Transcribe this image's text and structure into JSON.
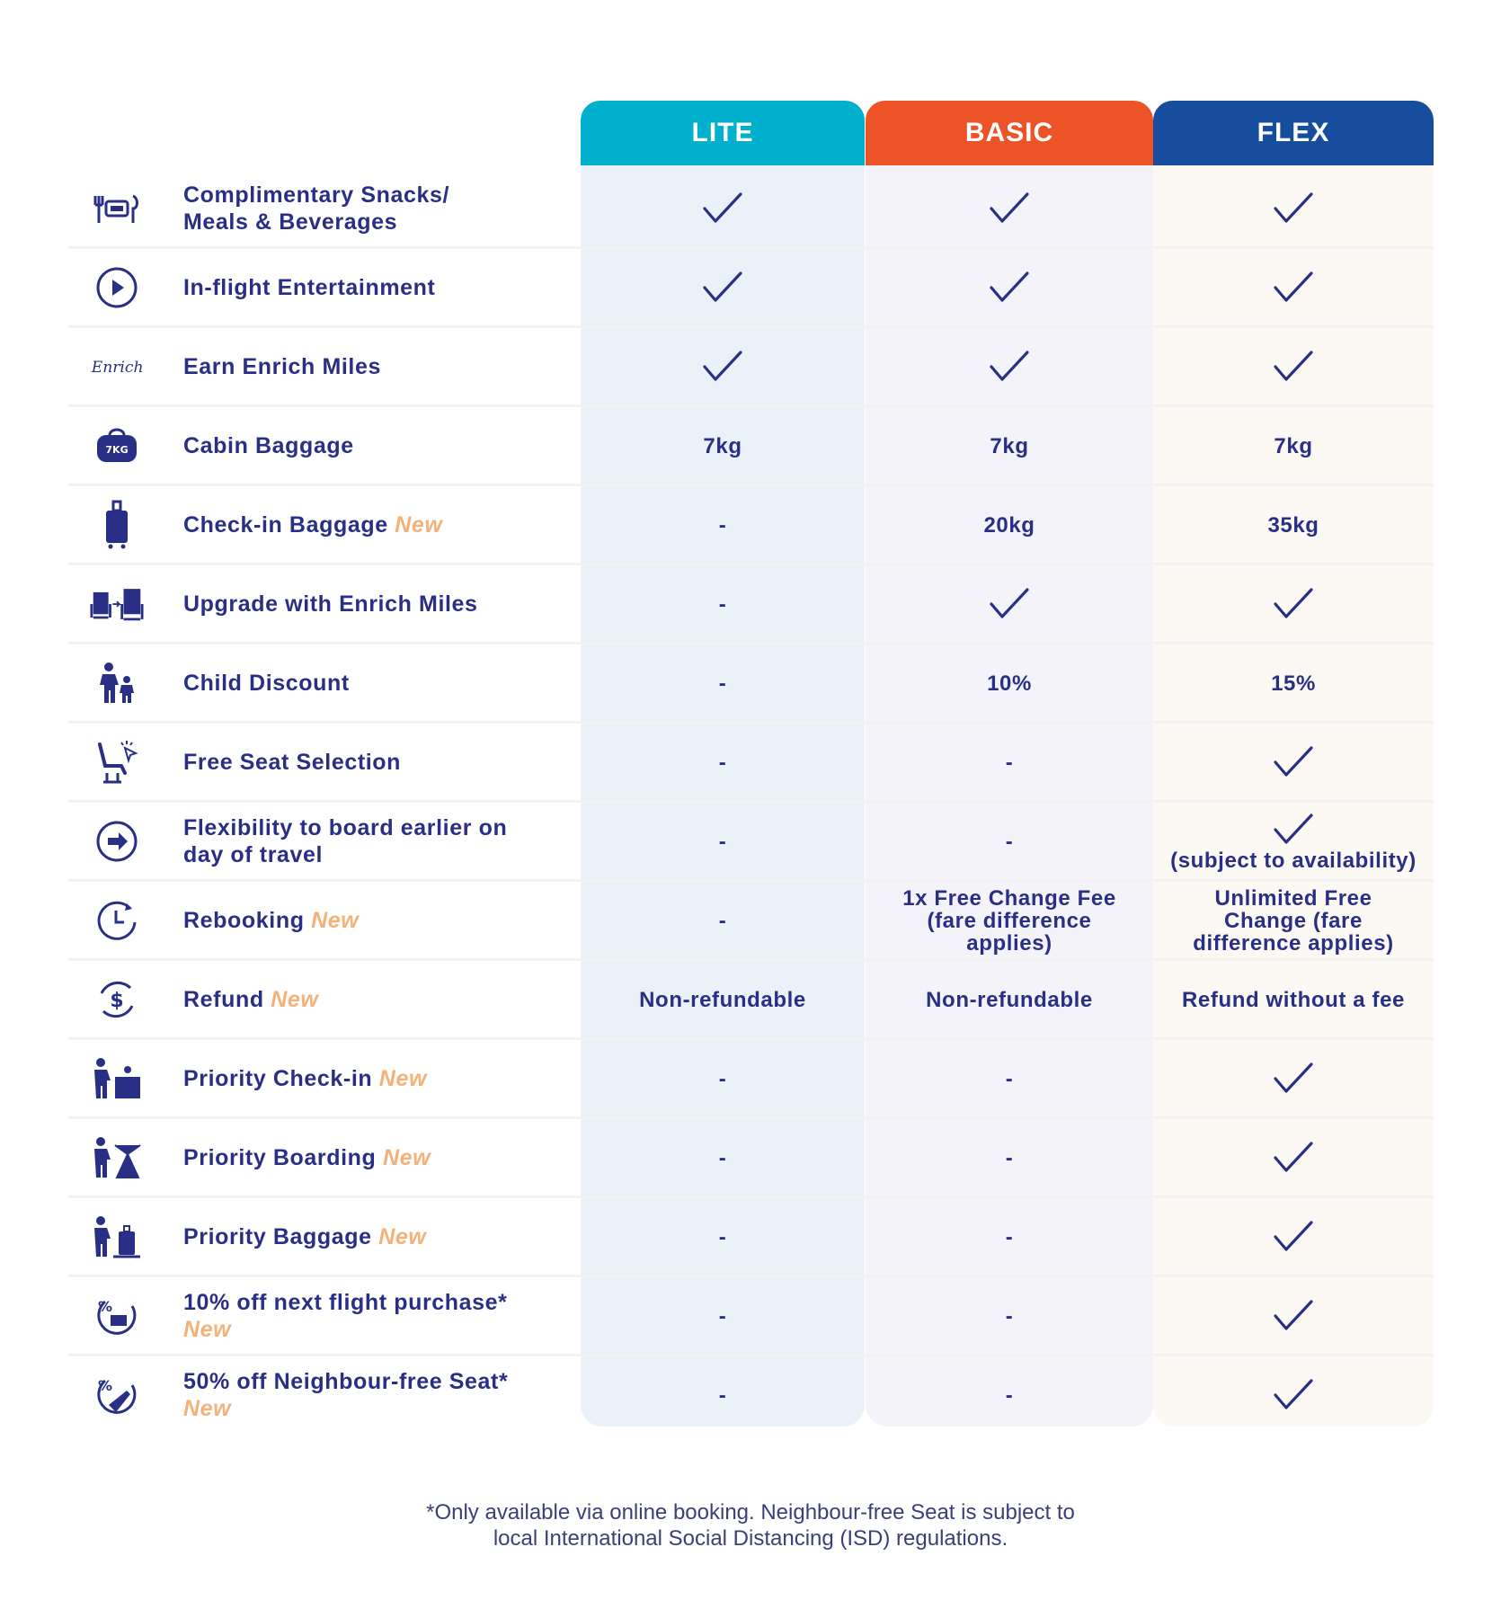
{
  "headers": {
    "lite": "LITE",
    "basic": "BASIC",
    "flex": "FLEX"
  },
  "colors": {
    "lite": "#00b0cd",
    "basic": "#ec5326",
    "flex": "#174d9d",
    "text": "#2a2f86",
    "new": "#f4b27a"
  },
  "rows": [
    {
      "label": "Complimentary Snacks/\nMeals & Beverages",
      "new": "",
      "icon": "meal-icon",
      "lite": "check",
      "basic": "check",
      "flex": "check"
    },
    {
      "label": "In-flight Entertainment",
      "new": "",
      "icon": "play-icon",
      "lite": "check",
      "basic": "check",
      "flex": "check"
    },
    {
      "label": "Earn Enrich Miles",
      "new": "",
      "icon": "enrich-logo-icon",
      "lite": "check",
      "basic": "check",
      "flex": "check"
    },
    {
      "label": "Cabin Baggage",
      "new": "",
      "icon": "cabin-bag-icon",
      "lite": "7kg",
      "basic": "7kg",
      "flex": "7kg"
    },
    {
      "label": "Check-in Baggage",
      "new": "New",
      "icon": "suitcase-icon",
      "lite": "-",
      "basic": "20kg",
      "flex": "35kg"
    },
    {
      "label": "Upgrade with Enrich Miles",
      "new": "",
      "icon": "seat-upgrade-icon",
      "lite": "-",
      "basic": "check",
      "flex": "check"
    },
    {
      "label": "Child Discount",
      "new": "",
      "icon": "family-icon",
      "lite": "-",
      "basic": "10%",
      "flex": "15%"
    },
    {
      "label": "Free Seat Selection",
      "new": "",
      "icon": "seat-select-icon",
      "lite": "-",
      "basic": "-",
      "flex": "check"
    },
    {
      "label": "Flexibility to board earlier on\nday of travel",
      "new": "",
      "icon": "arrow-circle-icon",
      "lite": "-",
      "basic": "-",
      "flex": "check",
      "flex_note": "(subject to availability)"
    },
    {
      "label": "Rebooking",
      "new": "New",
      "icon": "clock-icon",
      "lite": "-",
      "basic": "1x Free Change Fee\n(fare difference\napplies)",
      "flex": "Unlimited Free\nChange (fare\ndifference applies)"
    },
    {
      "label": "Refund",
      "new": "New",
      "icon": "refund-icon",
      "lite": "Non-refundable",
      "basic": "Non-refundable",
      "flex": "Refund without a fee"
    },
    {
      "label": "Priority Check-in",
      "new": "New",
      "icon": "priority-checkin-icon",
      "lite": "-",
      "basic": "-",
      "flex": "check"
    },
    {
      "label": "Priority Boarding",
      "new": "New",
      "icon": "priority-boarding-icon",
      "lite": "-",
      "basic": "-",
      "flex": "check"
    },
    {
      "label": "Priority Baggage",
      "new": "New",
      "icon": "priority-baggage-icon",
      "lite": "-",
      "basic": "-",
      "flex": "check"
    },
    {
      "label": "10% off next flight purchase*\n",
      "new": "New",
      "icon": "discount-flight-icon",
      "lite": "-",
      "basic": "-",
      "flex": "check"
    },
    {
      "label": "50% off Neighbour-free Seat*\n",
      "new": "New",
      "icon": "discount-seat-icon",
      "lite": "-",
      "basic": "-",
      "flex": "check"
    }
  ],
  "footer": {
    "line1": "*Only available via online booking. Neighbour-free Seat is subject to",
    "line2": "local International Social Distancing (ISD) regulations."
  }
}
